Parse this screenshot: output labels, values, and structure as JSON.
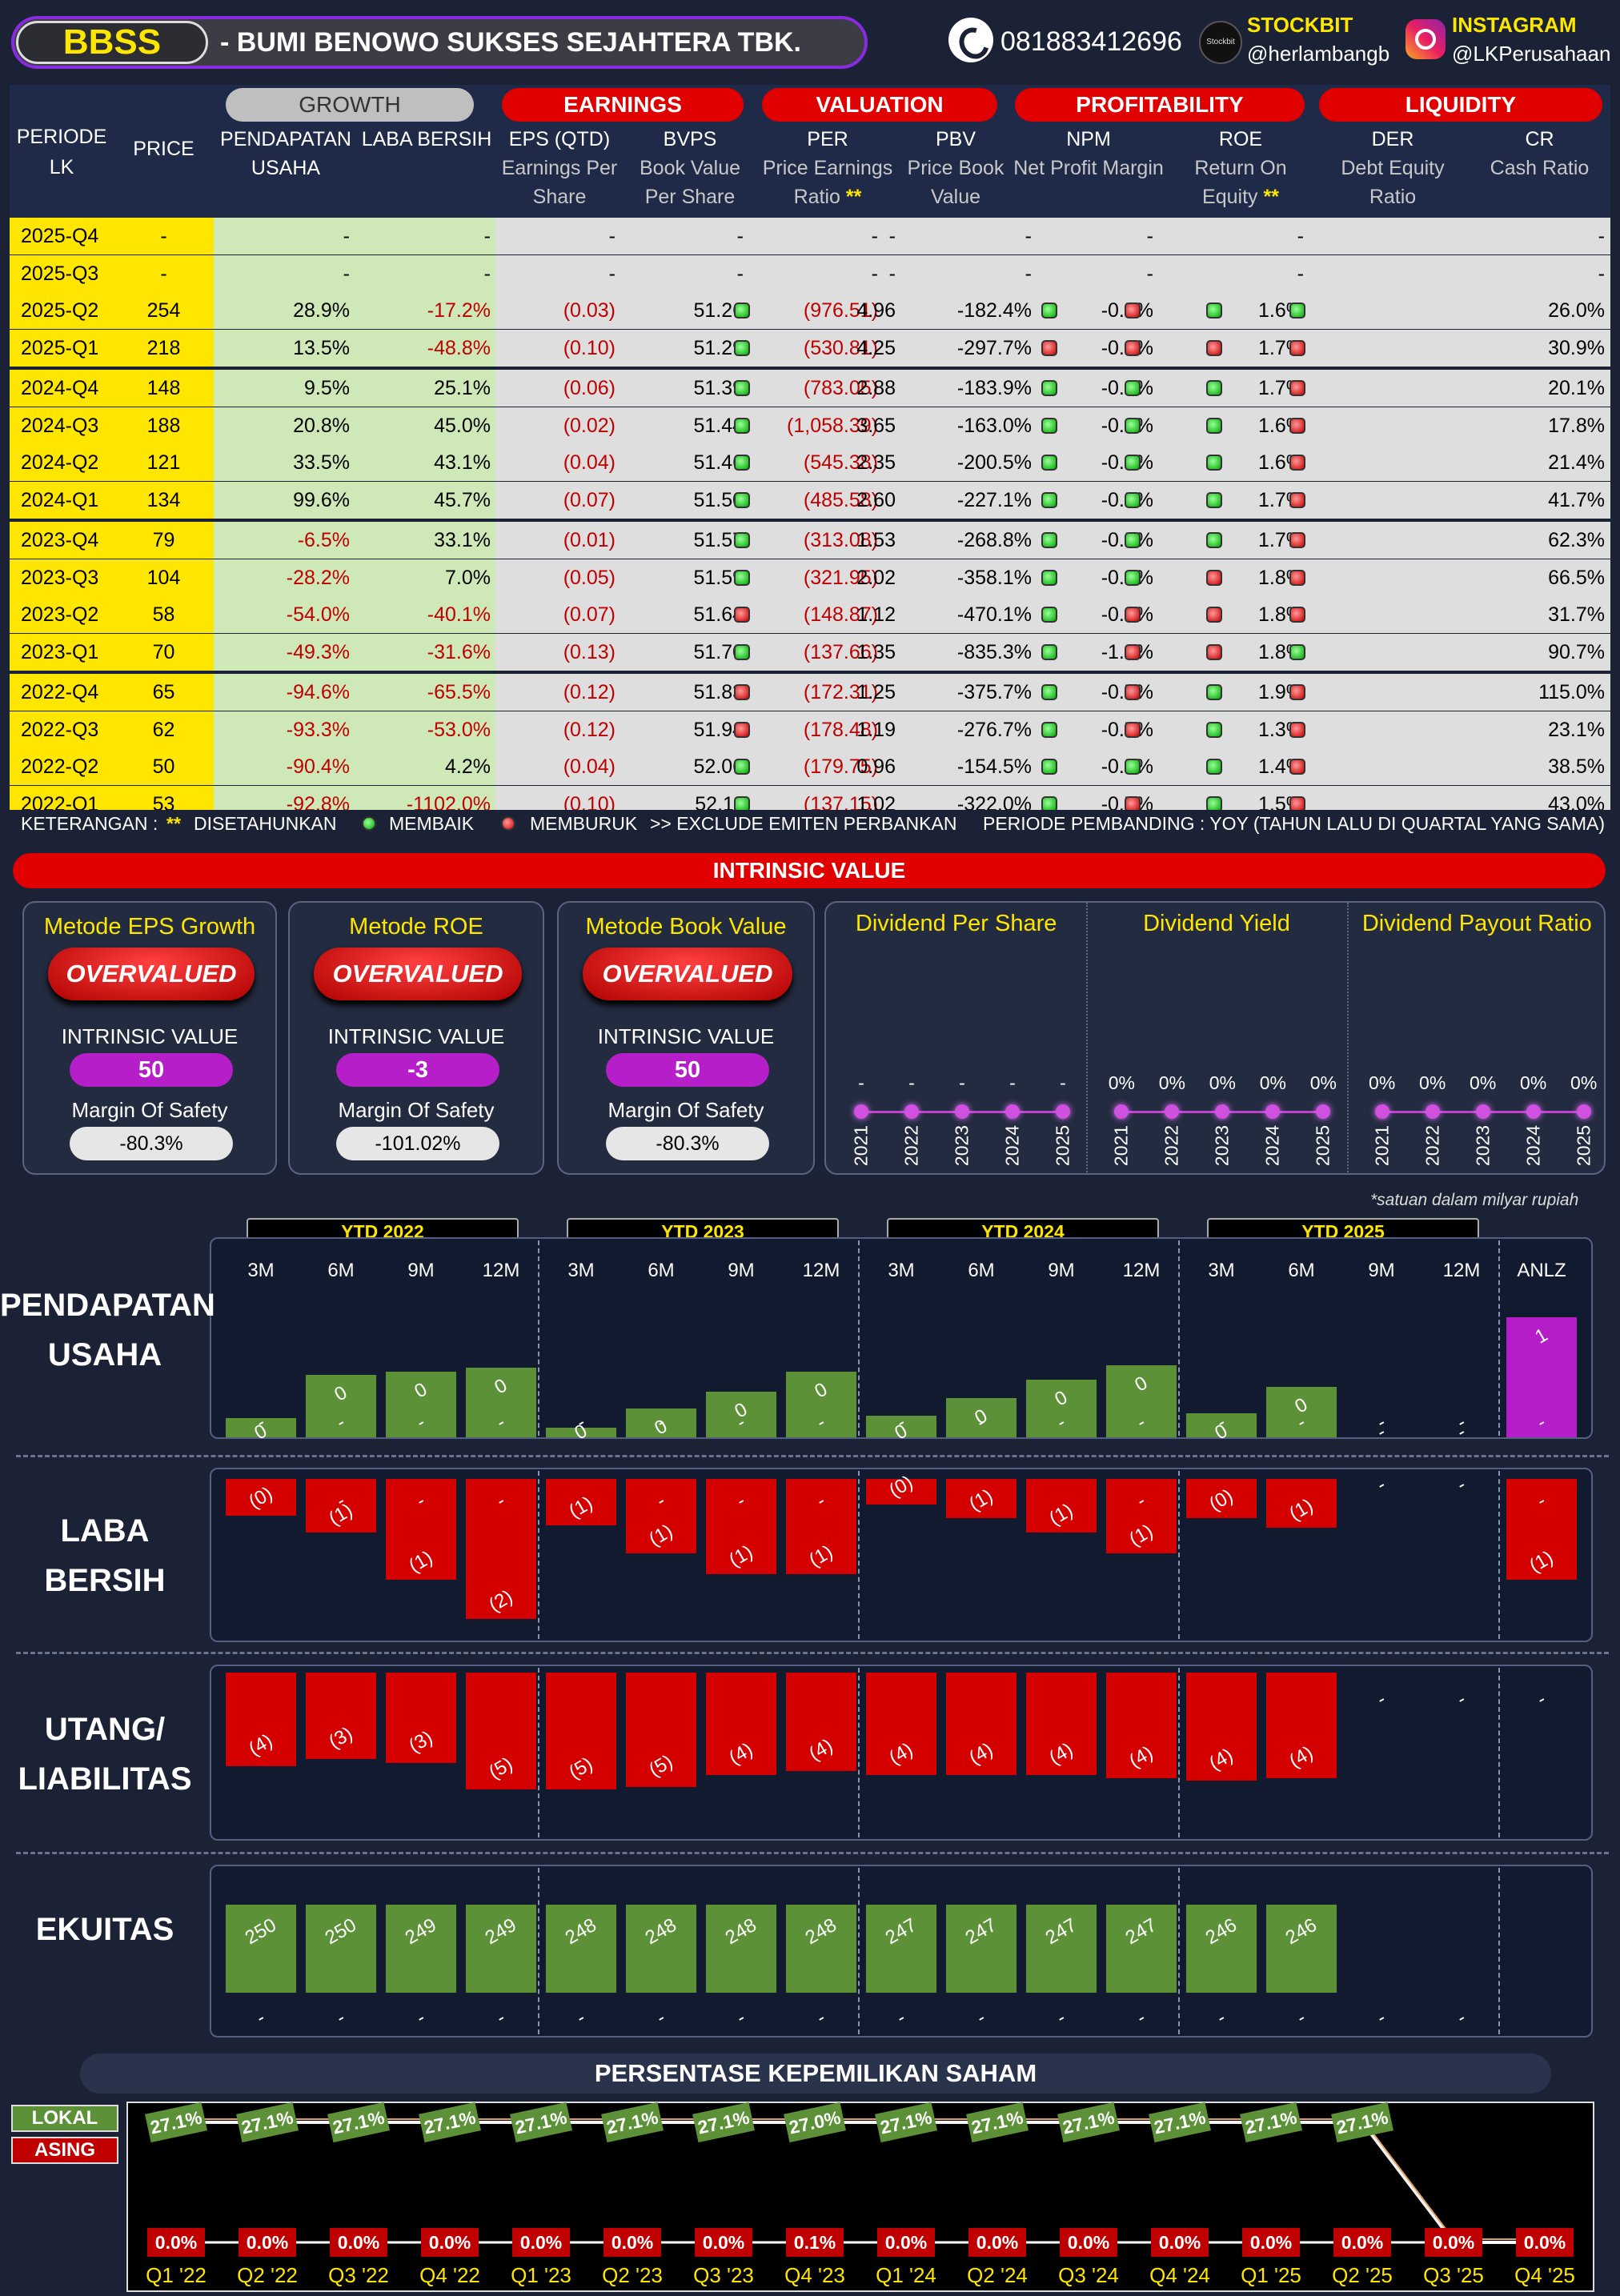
{
  "header": {
    "ticker": "BBSS",
    "company": "-  BUMI BENOWO SUKSES SEJAHTERA TBK.",
    "phone": "081883412696",
    "stockbit_icon": "Stockbit",
    "stockbit_label": "STOCKBIT",
    "stockbit_user": "@herlambangb",
    "instagram_label": "INSTAGRAM",
    "instagram_user": "@LKPerusahaan"
  },
  "table": {
    "groups": {
      "growth": "GROWTH",
      "earnings": "EARNINGS",
      "valuation": "VALUATION",
      "profitability": "PROFITABILITY",
      "liquidity": "LIQUIDITY"
    },
    "cols": {
      "periode": "PERIODE LK",
      "price": "PRICE",
      "pend": "PENDAPATAN USAHA",
      "laba": "LABA BERSIH",
      "eps": "EPS (QTD)",
      "eps_sub": "Earnings Per Share",
      "bvps": "BVPS",
      "bvps_sub": "Book Value Per Share",
      "per": "PER",
      "per_sub": "Price Earnings Ratio",
      "per_star": "**",
      "pbv": "PBV",
      "pbv_sub": "Price Book Value",
      "npm": "NPM",
      "npm_sub": "Net Profit Margin",
      "roe": "ROE",
      "roe_sub": "Return On Equity",
      "roe_star": "**",
      "der": "DER",
      "der_sub": "Debt Equity Ratio",
      "cr": "CR",
      "cr_sub": "Cash Ratio"
    },
    "rows": [
      {
        "p": "2025-Q4",
        "price": "-",
        "pu": "-",
        "pua": "",
        "lb": "-",
        "lba": "",
        "eps": "-",
        "bvps": "-",
        "bd": "",
        "per": "-",
        "pbv": "-",
        "pd": "",
        "npm": "-",
        "nd": "",
        "roe": "-",
        "rd": "",
        "der": "-",
        "dd": "",
        "cr": "-"
      },
      {
        "p": "2025-Q3",
        "price": "-",
        "pu": "-",
        "pua": "",
        "lb": "-",
        "lba": "",
        "eps": "-",
        "bvps": "-",
        "bd": "",
        "per": "-",
        "pbv": "-",
        "pd": "",
        "npm": "-",
        "nd": "",
        "roe": "-",
        "rd": "",
        "der": "-",
        "dd": "",
        "cr": "-"
      },
      {
        "p": "2025-Q2",
        "price": "254",
        "pu": "28.9%",
        "pua": "up",
        "lb": "-17.2%",
        "lba": "down",
        "eps": "(0.03)",
        "bvps": "51.26",
        "bd": "g",
        "per": "(976.51)",
        "pbv": "4.96",
        "pd": "g",
        "npm": "-182.4%",
        "nd": "r",
        "roe": "-0.5%",
        "rd": "g",
        "der": "1.6%",
        "dd": "g",
        "cr": "26.0%"
      },
      {
        "p": "2025-Q1",
        "price": "218",
        "pu": "13.5%",
        "pua": "up",
        "lb": "-48.8%",
        "lba": "down",
        "eps": "(0.10)",
        "bvps": "51.29",
        "bd": "g",
        "per": "(530.81)",
        "pbv": "4.25",
        "pd": "r",
        "npm": "-297.7%",
        "nd": "r",
        "roe": "-0.8%",
        "rd": "r",
        "der": "1.7%",
        "dd": "r",
        "cr": "30.9%"
      },
      {
        "p": "2024-Q4",
        "price": "148",
        "pu": "9.5%",
        "pua": "up",
        "lb": "25.1%",
        "lba": "up",
        "eps": "(0.06)",
        "bvps": "51.39",
        "bd": "g",
        "per": "(783.05)",
        "pbv": "2.88",
        "pd": "g",
        "npm": "-183.9%",
        "nd": "g",
        "roe": "-0.4%",
        "rd": "g",
        "der": "1.7%",
        "dd": "r",
        "cr": "20.1%"
      },
      {
        "p": "2024-Q3",
        "price": "188",
        "pu": "20.8%",
        "pua": "up",
        "lb": "45.0%",
        "lba": "up",
        "eps": "(0.02)",
        "bvps": "51.44",
        "bd": "g",
        "per": "(1,058.39)",
        "pbv": "3.65",
        "pd": "g",
        "npm": "-163.0%",
        "nd": "g",
        "roe": "-0.3%",
        "rd": "g",
        "der": "1.6%",
        "dd": "r",
        "cr": "17.8%"
      },
      {
        "p": "2024-Q2",
        "price": "121",
        "pu": "33.5%",
        "pua": "up",
        "lb": "43.1%",
        "lba": "up",
        "eps": "(0.04)",
        "bvps": "51.46",
        "bd": "g",
        "per": "(545.38)",
        "pbv": "2.35",
        "pd": "g",
        "npm": "-200.5%",
        "nd": "g",
        "roe": "-0.4%",
        "rd": "g",
        "der": "1.6%",
        "dd": "r",
        "cr": "21.4%"
      },
      {
        "p": "2024-Q1",
        "price": "134",
        "pu": "99.6%",
        "pua": "up",
        "lb": "45.7%",
        "lba": "up",
        "eps": "(0.07)",
        "bvps": "51.50",
        "bd": "g",
        "per": "(485.58)",
        "pbv": "2.60",
        "pd": "g",
        "npm": "-227.1%",
        "nd": "g",
        "roe": "-0.5%",
        "rd": "g",
        "der": "1.7%",
        "dd": "r",
        "cr": "41.7%"
      },
      {
        "p": "2023-Q4",
        "price": "79",
        "pu": "-6.5%",
        "pua": "down",
        "lb": "33.1%",
        "lba": "up",
        "eps": "(0.01)",
        "bvps": "51.57",
        "bd": "g",
        "per": "(313.08)",
        "pbv": "1.53",
        "pd": "g",
        "npm": "-268.8%",
        "nd": "g",
        "roe": "-0.5%",
        "rd": "g",
        "der": "1.7%",
        "dd": "r",
        "cr": "62.3%"
      },
      {
        "p": "2023-Q3",
        "price": "104",
        "pu": "-28.2%",
        "pua": "down",
        "lb": "7.0%",
        "lba": "up",
        "eps": "(0.05)",
        "bvps": "51.59",
        "bd": "g",
        "per": "(321.95)",
        "pbv": "2.02",
        "pd": "g",
        "npm": "-358.1%",
        "nd": "g",
        "roe": "-0.6%",
        "rd": "r",
        "der": "1.8%",
        "dd": "r",
        "cr": "66.5%"
      },
      {
        "p": "2023-Q2",
        "price": "58",
        "pu": "-54.0%",
        "pua": "down",
        "lb": "-40.1%",
        "lba": "down",
        "eps": "(0.07)",
        "bvps": "51.64",
        "bd": "r",
        "per": "(148.87)",
        "pbv": "1.12",
        "pd": "g",
        "npm": "-470.1%",
        "nd": "r",
        "roe": "-0.8%",
        "rd": "r",
        "der": "1.8%",
        "dd": "r",
        "cr": "31.7%"
      },
      {
        "p": "2023-Q1",
        "price": "70",
        "pu": "-49.3%",
        "pua": "down",
        "lb": "-31.6%",
        "lba": "down",
        "eps": "(0.13)",
        "bvps": "51.70",
        "bd": "g",
        "per": "(137.66)",
        "pbv": "1.35",
        "pd": "g",
        "npm": "-835.3%",
        "nd": "r",
        "roe": "-1.0%",
        "rd": "r",
        "der": "1.8%",
        "dd": "g",
        "cr": "90.7%"
      },
      {
        "p": "2022-Q4",
        "price": "65",
        "pu": "-94.6%",
        "pua": "down",
        "lb": "-65.5%",
        "lba": "down",
        "eps": "(0.12)",
        "bvps": "51.83",
        "bd": "r",
        "per": "(172.31)",
        "pbv": "1.25",
        "pd": "g",
        "npm": "-375.7%",
        "nd": "r",
        "roe": "-0.7%",
        "rd": "g",
        "der": "1.9%",
        "dd": "r",
        "cr": "115.0%"
      },
      {
        "p": "2022-Q3",
        "price": "62",
        "pu": "-93.3%",
        "pua": "down",
        "lb": "-53.0%",
        "lba": "down",
        "eps": "(0.12)",
        "bvps": "51.94",
        "bd": "r",
        "per": "(178.48)",
        "pbv": "1.19",
        "pd": "g",
        "npm": "-276.7%",
        "nd": "r",
        "roe": "-0.7%",
        "rd": "g",
        "der": "1.3%",
        "dd": "r",
        "cr": "23.1%"
      },
      {
        "p": "2022-Q2",
        "price": "50",
        "pu": "-90.4%",
        "pua": "down",
        "lb": "4.2%",
        "lba": "up",
        "eps": "(0.04)",
        "bvps": "52.06",
        "bd": "g",
        "per": "(179.75)",
        "pbv": "0.96",
        "pd": "g",
        "npm": "-154.5%",
        "nd": "g",
        "roe": "-0.5%",
        "rd": "g",
        "der": "1.4%",
        "dd": "r",
        "cr": "38.5%"
      },
      {
        "p": "2022-Q1",
        "price": "53",
        "pu": "-92.8%",
        "pua": "down",
        "lb": "-1102.0%",
        "lba": "down",
        "eps": "(0.10)",
        "bvps": "52.11",
        "bd": "g",
        "per": "(137.15)",
        "pbv": "1.02",
        "pd": "g",
        "npm": "-322.0%",
        "nd": "r",
        "roe": "-0.7%",
        "rd": "g",
        "der": "1.5%",
        "dd": "r",
        "cr": "43.0%"
      }
    ],
    "legend": {
      "prefix": "KETERANGAN :",
      "star": "**",
      "annual": "DISETAHUNKAN",
      "better": "MEMBAIK",
      "worse": "MEMBURUK",
      "exclude": ">> EXCLUDE EMITEN PERBANKAN",
      "compare": "PERIODE PEMBANDING : YOY (TAHUN LALU DI QUARTAL YANG SAMA)"
    }
  },
  "intrinsic": {
    "title": "INTRINSIC VALUE",
    "cards": [
      {
        "title": "Metode EPS Growth",
        "status": "OVERVALUED",
        "iv_label": "INTRINSIC VALUE",
        "iv": "50",
        "mos_label": "Margin Of Safety",
        "mos": "-80.3%"
      },
      {
        "title": "Metode ROE",
        "status": "OVERVALUED",
        "iv_label": "INTRINSIC VALUE",
        "iv": "-3",
        "mos_label": "Margin Of Safety",
        "mos": "-101.02%"
      },
      {
        "title": "Metode Book Value",
        "status": "OVERVALUED",
        "iv_label": "INTRINSIC VALUE",
        "iv": "50",
        "mos_label": "Margin Of Safety",
        "mos": "-80.3%"
      }
    ],
    "dividend": {
      "titles": [
        "Dividend Per Share",
        "Dividend Yield",
        "Dividend Payout Ratio"
      ],
      "years": [
        "2021",
        "2022",
        "2023",
        "2024",
        "2025"
      ],
      "dps": [
        "-",
        "-",
        "-",
        "-",
        "-"
      ],
      "yield": [
        "0%",
        "0%",
        "0%",
        "0%",
        "0%"
      ],
      "payout": [
        "0%",
        "0%",
        "0%",
        "0%",
        "0%"
      ]
    }
  },
  "financials": {
    "unit_note": "*satuan dalam milyar rupiah",
    "ytd": [
      "YTD 2022",
      "YTD 2023",
      "YTD 2024",
      "YTD 2025"
    ],
    "months": [
      "3M",
      "6M",
      "9M",
      "12M",
      "3M",
      "6M",
      "9M",
      "12M",
      "3M",
      "6M",
      "9M",
      "12M",
      "3M",
      "6M",
      "9M",
      "12M",
      "ANLZ"
    ],
    "sections": {
      "pendapatan": "PENDAPATAN USAHA",
      "laba": "LABA BERSIH",
      "utang": "UTANG/ LIABILITAS",
      "ekuitas": "EKUITAS"
    },
    "pendapatan": {
      "labels": [
        "0",
        "0",
        "0",
        "0",
        "0",
        "0",
        "0",
        "0",
        "0",
        "0",
        "0",
        "0",
        "0",
        "0",
        "-",
        "-",
        "1"
      ],
      "sub": [
        "-",
        "-",
        "-",
        "-",
        "-",
        "-",
        "-",
        "-",
        "-",
        "-",
        "-",
        "-",
        "-",
        "-",
        "-",
        "-",
        "-"
      ],
      "heights": [
        0.16,
        0.52,
        0.55,
        0.58,
        0.08,
        0.24,
        0.38,
        0.55,
        0.18,
        0.33,
        0.48,
        0.6,
        0.2,
        0.42,
        0,
        0,
        1.0
      ]
    },
    "laba": {
      "labels": [
        "(0)",
        "(1)",
        "(1)",
        "(2)",
        "(1)",
        "(1)",
        "(1)",
        "(1)",
        "(0)",
        "(1)",
        "(1)",
        "(1)",
        "(0)",
        "(1)",
        "-",
        "-",
        "(1)"
      ],
      "sub": [
        "",
        "-",
        "-",
        "-",
        "",
        "-",
        "-",
        "-",
        "",
        "",
        "",
        "-",
        "",
        "",
        "",
        "",
        "-"
      ],
      "heights": [
        0.26,
        0.38,
        0.72,
        1.0,
        0.33,
        0.53,
        0.68,
        0.68,
        0.18,
        0.28,
        0.38,
        0.53,
        0.28,
        0.35,
        0,
        0,
        0.72
      ]
    },
    "utang": {
      "labels": [
        "(4)",
        "(3)",
        "(3)",
        "(5)",
        "(5)",
        "(5)",
        "(4)",
        "(4)",
        "(4)",
        "(4)",
        "(4)",
        "(4)",
        "(4)",
        "(4)",
        "-",
        "-",
        "-"
      ],
      "heights": [
        0.78,
        0.72,
        0.75,
        0.97,
        0.97,
        0.95,
        0.85,
        0.82,
        0.85,
        0.85,
        0.85,
        0.88,
        0.9,
        0.88,
        0,
        0,
        0
      ]
    },
    "ekuitas": {
      "labels": [
        "250",
        "250",
        "249",
        "249",
        "248",
        "248",
        "248",
        "248",
        "247",
        "247",
        "247",
        "247",
        "246",
        "246",
        "",
        "",
        ""
      ],
      "sub": [
        "-",
        "-",
        "-",
        "-",
        "-",
        "-",
        "-",
        "-",
        "-",
        "-",
        "-",
        "-",
        "-",
        "-",
        "-",
        "-",
        ""
      ]
    }
  },
  "ownership": {
    "title": "PERSENTASE KEPEMILIKAN SAHAM",
    "lokal_label": "LOKAL",
    "asing_label": "ASING",
    "quarters": [
      "Q1 '22",
      "Q2 '22",
      "Q3 '22",
      "Q4 '22",
      "Q1 '23",
      "Q2 '23",
      "Q3 '23",
      "Q4 '23",
      "Q1 '24",
      "Q2 '24",
      "Q3 '24",
      "Q4 '24",
      "Q1 '25",
      "Q2 '25",
      "Q3 '25",
      "Q4 '25"
    ],
    "lokal": [
      "27.1%",
      "27.1%",
      "27.1%",
      "27.1%",
      "27.1%",
      "27.1%",
      "27.1%",
      "27.0%",
      "27.1%",
      "27.1%",
      "27.1%",
      "27.1%",
      "27.1%",
      "27.1%",
      "",
      ""
    ],
    "asing": [
      "0.0%",
      "0.0%",
      "0.0%",
      "0.0%",
      "0.0%",
      "0.0%",
      "0.0%",
      "0.1%",
      "0.0%",
      "0.0%",
      "0.0%",
      "0.0%",
      "0.0%",
      "0.0%",
      "0.0%",
      "0.0%"
    ]
  }
}
